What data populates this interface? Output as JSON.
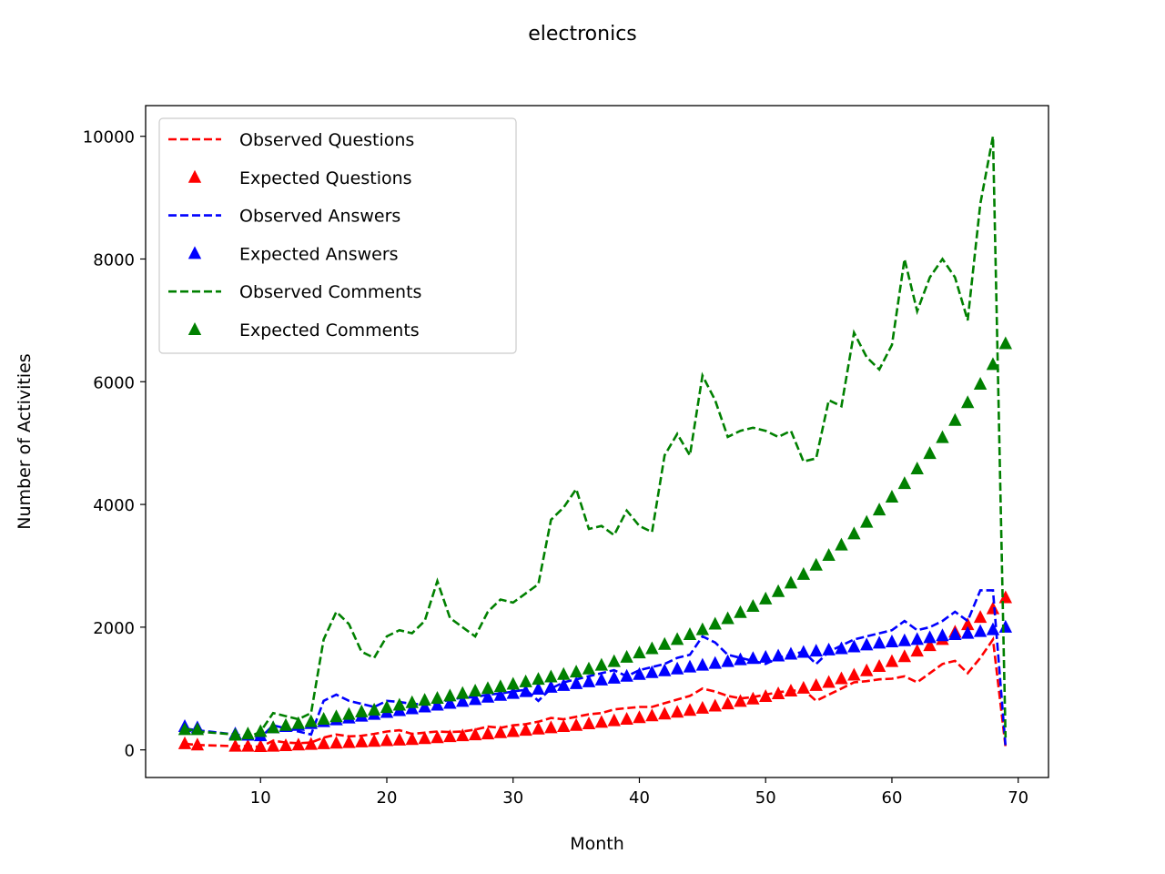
{
  "chart_data": {
    "type": "line",
    "title": "electronics",
    "xlabel": "Month",
    "ylabel": "Number of Activities",
    "xlim": [
      0.9,
      72.4
    ],
    "ylim": [
      -450,
      10500
    ],
    "xticks": [
      10,
      20,
      30,
      40,
      50,
      60,
      70
    ],
    "yticks": [
      0,
      2000,
      4000,
      6000,
      8000,
      10000
    ],
    "grid": false,
    "legend_position": "upper-left",
    "x": [
      4,
      5,
      8,
      9,
      10,
      11,
      12,
      13,
      14,
      15,
      16,
      17,
      18,
      19,
      20,
      21,
      22,
      23,
      24,
      25,
      26,
      27,
      28,
      29,
      30,
      31,
      32,
      33,
      34,
      35,
      36,
      37,
      38,
      39,
      40,
      41,
      42,
      43,
      44,
      45,
      46,
      47,
      48,
      49,
      50,
      51,
      52,
      53,
      54,
      55,
      56,
      57,
      58,
      59,
      60,
      61,
      62,
      63,
      64,
      65,
      66,
      67,
      68,
      69
    ],
    "series": [
      {
        "name": "Observed Questions",
        "style": "dashed-line",
        "color": "#ff0000",
        "values": [
          100,
          80,
          60,
          60,
          50,
          150,
          120,
          110,
          120,
          200,
          250,
          220,
          230,
          260,
          300,
          320,
          260,
          280,
          300,
          290,
          300,
          330,
          380,
          360,
          400,
          420,
          460,
          520,
          500,
          540,
          580,
          600,
          660,
          680,
          700,
          700,
          760,
          820,
          880,
          1000,
          950,
          880,
          840,
          860,
          900,
          940,
          960,
          980,
          800,
          900,
          1000,
          1100,
          1120,
          1150,
          1160,
          1200,
          1100,
          1250,
          1400,
          1450,
          1250,
          1500,
          1800,
          50
        ]
      },
      {
        "name": "Expected Questions",
        "style": "triangle-markers",
        "color": "#ff0000",
        "values": [
          100,
          80,
          60,
          60,
          55,
          60,
          70,
          80,
          90,
          100,
          110,
          120,
          130,
          140,
          150,
          160,
          170,
          185,
          200,
          215,
          230,
          245,
          260,
          280,
          300,
          320,
          340,
          360,
          380,
          400,
          425,
          450,
          475,
          500,
          525,
          555,
          585,
          615,
          645,
          680,
          715,
          750,
          790,
          830,
          870,
          915,
          960,
          1005,
          1050,
          1100,
          1160,
          1220,
          1290,
          1360,
          1440,
          1520,
          1610,
          1700,
          1800,
          1920,
          2040,
          2160,
          2300,
          2480
        ]
      },
      {
        "name": "Observed Answers",
        "style": "dashed-line",
        "color": "#0000ff",
        "values": [
          350,
          320,
          250,
          220,
          200,
          400,
          350,
          300,
          250,
          800,
          900,
          800,
          750,
          700,
          800,
          780,
          750,
          740,
          760,
          820,
          850,
          860,
          900,
          920,
          950,
          980,
          800,
          1000,
          1100,
          1150,
          1200,
          1250,
          1300,
          1200,
          1300,
          1350,
          1400,
          1500,
          1550,
          1850,
          1750,
          1550,
          1500,
          1450,
          1400,
          1500,
          1550,
          1600,
          1400,
          1600,
          1700,
          1800,
          1850,
          1900,
          1950,
          2100,
          1950,
          2000,
          2100,
          2250,
          2100,
          2600,
          2600,
          60
        ]
      },
      {
        "name": "Expected Answers",
        "style": "triangle-markers",
        "color": "#0000ff",
        "values": [
          380,
          360,
          260,
          240,
          230,
          360,
          380,
          400,
          430,
          460,
          490,
          520,
          550,
          580,
          610,
          640,
          670,
          700,
          730,
          760,
          790,
          820,
          860,
          890,
          920,
          950,
          990,
          1020,
          1050,
          1080,
          1110,
          1140,
          1170,
          1200,
          1230,
          1260,
          1290,
          1320,
          1350,
          1380,
          1410,
          1440,
          1470,
          1490,
          1510,
          1530,
          1560,
          1590,
          1610,
          1630,
          1650,
          1680,
          1710,
          1740,
          1760,
          1780,
          1800,
          1830,
          1860,
          1880,
          1900,
          1930,
          1960,
          2000
        ]
      },
      {
        "name": "Observed Comments",
        "style": "dashed-line",
        "color": "#008000",
        "values": [
          350,
          300,
          250,
          200,
          300,
          600,
          550,
          500,
          600,
          1800,
          2250,
          2050,
          1600,
          1500,
          1850,
          1950,
          1900,
          2100,
          2750,
          2150,
          2000,
          1850,
          2250,
          2450,
          2400,
          2550,
          2700,
          3750,
          3950,
          4250,
          3600,
          3650,
          3500,
          3900,
          3650,
          3550,
          4800,
          5150,
          4800,
          6100,
          5700,
          5100,
          5200,
          5250,
          5200,
          5100,
          5200,
          4700,
          4750,
          5700,
          5600,
          6800,
          6400,
          6200,
          6600,
          8000,
          7150,
          7700,
          8000,
          7700,
          7000,
          8900,
          10000,
          200
        ]
      },
      {
        "name": "Expected Comments",
        "style": "triangle-markers",
        "color": "#008000",
        "values": [
          330,
          330,
          240,
          260,
          300,
          360,
          400,
          430,
          460,
          500,
          540,
          580,
          620,
          650,
          690,
          730,
          770,
          810,
          840,
          880,
          920,
          960,
          1000,
          1030,
          1070,
          1110,
          1150,
          1190,
          1230,
          1270,
          1320,
          1380,
          1440,
          1510,
          1580,
          1650,
          1720,
          1800,
          1880,
          1960,
          2050,
          2140,
          2240,
          2340,
          2460,
          2580,
          2720,
          2860,
          3010,
          3170,
          3340,
          3520,
          3710,
          3910,
          4120,
          4340,
          4580,
          4830,
          5090,
          5370,
          5660,
          5960,
          6280,
          6620
        ]
      }
    ]
  }
}
